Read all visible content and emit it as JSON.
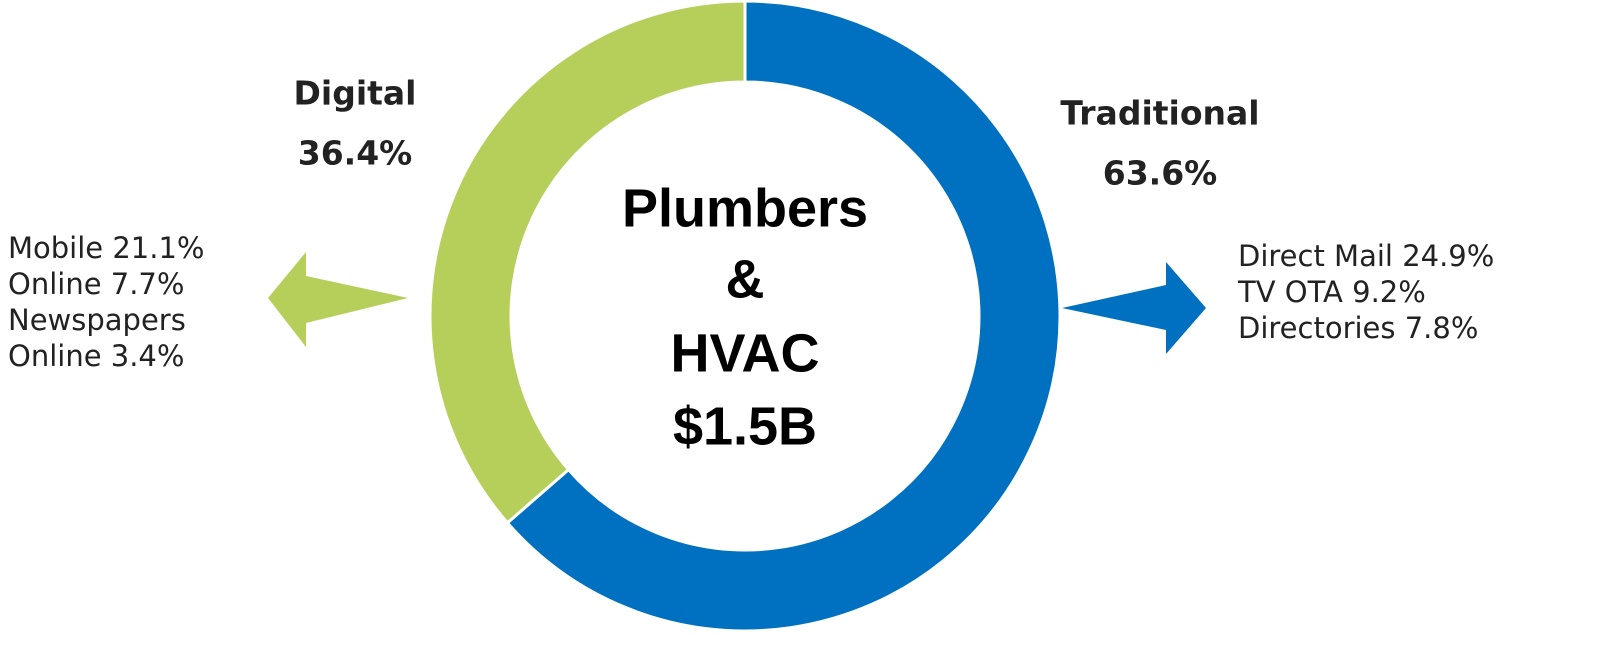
{
  "chart_data": {
    "type": "donut",
    "center_lines": [
      "Plumbers",
      "&",
      "HVAC",
      "$1.5B"
    ],
    "categories": [
      "Digital",
      "Traditional"
    ],
    "values": [
      36.4,
      63.6
    ],
    "value_labels": [
      "36.4%",
      "63.6%"
    ],
    "colors": [
      "#b5cf5a",
      "#0070c0"
    ],
    "breakdowns": [
      {
        "items": [
          {
            "name": "Mobile",
            "value": 21.1,
            "value_label": "21.1%"
          },
          {
            "name": "Online",
            "value": 7.7,
            "value_label": "7.7%"
          },
          {
            "name": "Newspapers Online",
            "value": 3.4,
            "value_label": "3.4%"
          }
        ]
      },
      {
        "items": [
          {
            "name": "Direct Mail",
            "value": 24.9,
            "value_label": "24.9%"
          },
          {
            "name": "TV OTA",
            "value": 9.2,
            "value_label": "9.2%"
          },
          {
            "name": "Directories",
            "value": 7.8,
            "value_label": "7.8%"
          }
        ]
      }
    ]
  }
}
